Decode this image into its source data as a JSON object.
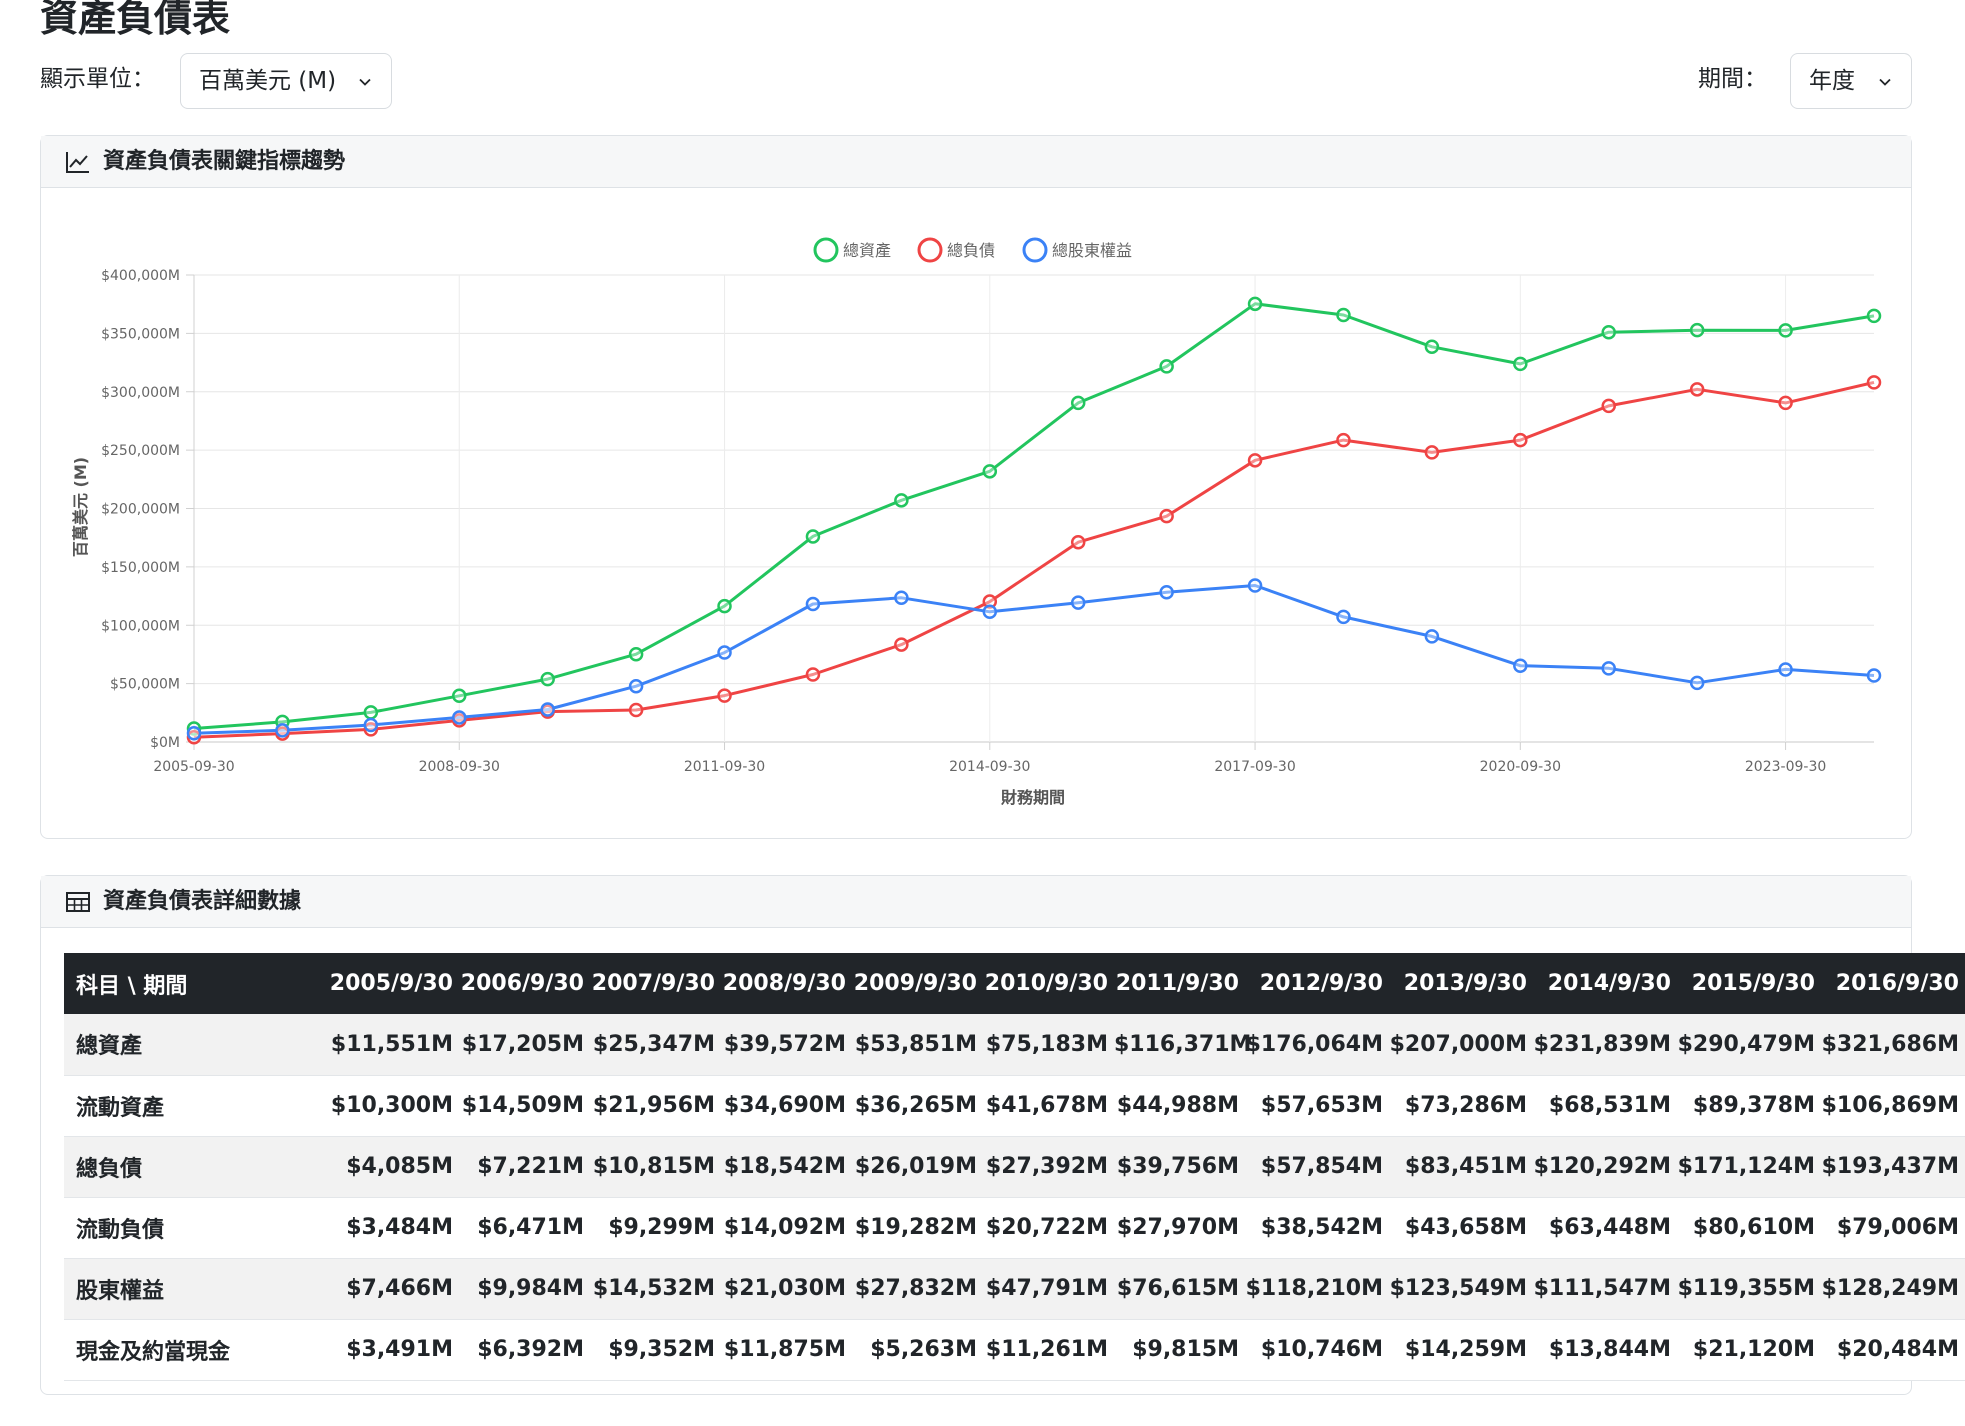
{
  "page": {
    "title": "資產負債表"
  },
  "controls": {
    "unit_label": "顯示單位：",
    "unit_value": "百萬美元 (M)",
    "period_label": "期間：",
    "period_value": "年度"
  },
  "chart_card": {
    "title": "資產負債表關鍵指標趨勢",
    "icon": "line-chart-icon"
  },
  "table_card": {
    "title": "資產負債表詳細數據",
    "icon": "table-icon"
  },
  "chart_data": {
    "type": "line",
    "title": "",
    "xlabel": "財務期間",
    "ylabel": "百萬美元 (M)",
    "ylim": [
      0,
      400000
    ],
    "yticks": [
      "$0M",
      "$50,000M",
      "$100,000M",
      "$150,000M",
      "$200,000M",
      "$250,000M",
      "$300,000M",
      "$350,000M",
      "$400,000M"
    ],
    "xtick_labels": [
      "2005-09-30",
      "2008-09-30",
      "2011-09-30",
      "2014-09-30",
      "2017-09-30",
      "2020-09-30",
      "2023-09-30"
    ],
    "x": [
      "2005-09-30",
      "2006-09-30",
      "2007-09-30",
      "2008-09-30",
      "2009-09-30",
      "2010-09-30",
      "2011-09-30",
      "2012-09-30",
      "2013-09-30",
      "2014-09-30",
      "2015-09-30",
      "2016-09-30",
      "2017-09-30",
      "2018-09-30",
      "2019-09-30",
      "2020-09-30",
      "2021-09-30",
      "2022-09-30",
      "2023-09-30",
      "2024-09-30"
    ],
    "legend_position": "top",
    "grid": true,
    "series": [
      {
        "name": "總資產",
        "color": "#22c55e",
        "values": [
          11551,
          17205,
          25347,
          39572,
          53851,
          75183,
          116371,
          176064,
          207000,
          231839,
          290479,
          321686,
          375319,
          365725,
          338516,
          323888,
          351002,
          352755,
          352583,
          364980
        ]
      },
      {
        "name": "總負債",
        "color": "#ef4444",
        "values": [
          4085,
          7221,
          10815,
          18542,
          26019,
          27392,
          39756,
          57854,
          83451,
          120292,
          171124,
          193437,
          241272,
          258578,
          248028,
          258549,
          287912,
          302083,
          290437,
          308030
        ]
      },
      {
        "name": "總股東權益",
        "color": "#3b82f6",
        "values": [
          7466,
          9984,
          14532,
          21030,
          27832,
          47791,
          76615,
          118210,
          123549,
          111547,
          119355,
          128249,
          134047,
          107147,
          90488,
          65339,
          63090,
          50672,
          62146,
          56950
        ]
      }
    ]
  },
  "table": {
    "header_first": "科目 \\ 期間",
    "periods": [
      "2005/9/30",
      "2006/9/30",
      "2007/9/30",
      "2008/9/30",
      "2009/9/30",
      "2010/9/30",
      "2011/9/30",
      "2012/9/30",
      "2013/9/30",
      "2014/9/30",
      "2015/9/30",
      "2016/9/30"
    ],
    "rows": [
      {
        "label": "總資產",
        "values": [
          "$11,551M",
          "$17,205M",
          "$25,347M",
          "$39,572M",
          "$53,851M",
          "$75,183M",
          "$116,371M",
          "$176,064M",
          "$207,000M",
          "$231,839M",
          "$290,479M",
          "$321,686M"
        ]
      },
      {
        "label": "流動資產",
        "values": [
          "$10,300M",
          "$14,509M",
          "$21,956M",
          "$34,690M",
          "$36,265M",
          "$41,678M",
          "$44,988M",
          "$57,653M",
          "$73,286M",
          "$68,531M",
          "$89,378M",
          "$106,869M"
        ]
      },
      {
        "label": "總負債",
        "values": [
          "$4,085M",
          "$7,221M",
          "$10,815M",
          "$18,542M",
          "$26,019M",
          "$27,392M",
          "$39,756M",
          "$57,854M",
          "$83,451M",
          "$120,292M",
          "$171,124M",
          "$193,437M"
        ]
      },
      {
        "label": "流動負債",
        "values": [
          "$3,484M",
          "$6,471M",
          "$9,299M",
          "$14,092M",
          "$19,282M",
          "$20,722M",
          "$27,970M",
          "$38,542M",
          "$43,658M",
          "$63,448M",
          "$80,610M",
          "$79,006M"
        ]
      },
      {
        "label": "股東權益",
        "values": [
          "$7,466M",
          "$9,984M",
          "$14,532M",
          "$21,030M",
          "$27,832M",
          "$47,791M",
          "$76,615M",
          "$118,210M",
          "$123,549M",
          "$111,547M",
          "$119,355M",
          "$128,249M"
        ]
      },
      {
        "label": "現金及約當現金",
        "values": [
          "$3,491M",
          "$6,392M",
          "$9,352M",
          "$11,875M",
          "$5,263M",
          "$11,261M",
          "$9,815M",
          "$10,746M",
          "$14,259M",
          "$13,844M",
          "$21,120M",
          "$20,484M"
        ]
      }
    ]
  }
}
